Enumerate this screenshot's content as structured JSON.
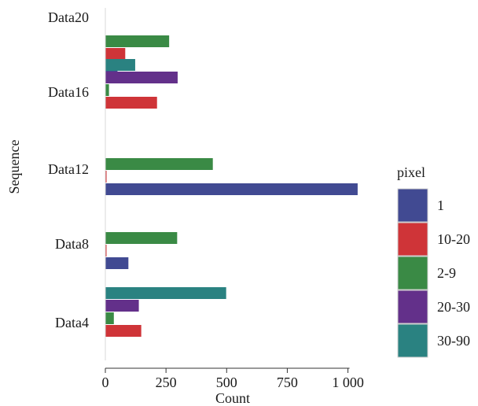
{
  "chart_data": {
    "type": "bar",
    "orientation": "horizontal",
    "title": "",
    "xlabel": "Count",
    "ylabel": "Sequence",
    "xlim": [
      0,
      1050
    ],
    "x_ticks": [
      0,
      250,
      500,
      750,
      1000
    ],
    "x_tick_labels": [
      "0",
      "250",
      "500",
      "750",
      "1 000"
    ],
    "categories": [
      "Data20",
      "Data16",
      "Data12",
      "Data8",
      "Data4"
    ],
    "legend_title": "pixel",
    "legend_position": "right",
    "grid": false,
    "series": [
      {
        "name": "1",
        "color": "#414a92",
        "values": [
          50,
          0,
          1040,
          95,
          0
        ]
      },
      {
        "name": "10-20",
        "color": "#cf3438",
        "values": [
          82,
          213,
          5,
          3,
          148
        ]
      },
      {
        "name": "2-9",
        "color": "#3a8a45",
        "values": [
          263,
          15,
          443,
          296,
          35
        ]
      },
      {
        "name": "20-30",
        "color": "#63308a",
        "values": [
          0,
          298,
          0,
          0,
          138
        ]
      },
      {
        "name": "30-90",
        "color": "#2a8281",
        "values": [
          0,
          123,
          0,
          0,
          498
        ]
      }
    ]
  }
}
